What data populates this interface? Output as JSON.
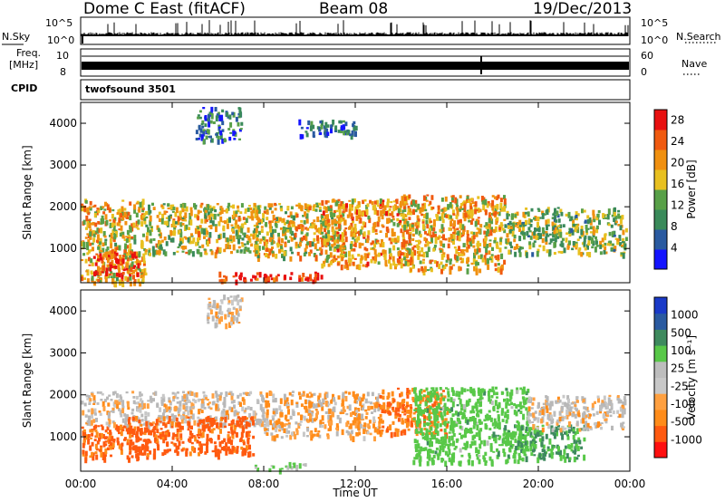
{
  "header": {
    "station": "Dome C East (fitACF)",
    "beam": "Beam 08",
    "date": "19/Dec/2013"
  },
  "summary_panels": {
    "nsky_label": "N.Sky",
    "nsearch_label": "N.Search",
    "nsky_ticks": [
      "10^5",
      "10^0"
    ],
    "nsearch_ticks": [
      "10^5",
      "10^0"
    ],
    "freq_label_top": "Freq.",
    "freq_label_unit": "[MHz]",
    "freq_ticks": [
      "10",
      "8"
    ],
    "nave_label": "Nave",
    "nave_ticks": [
      "60",
      "0"
    ],
    "cpid_label": "CPID",
    "cpid_value": "twofsound 3501"
  },
  "colors": {
    "power_scale": [
      "#1414ff",
      "#2a5aa0",
      "#3a8a5a",
      "#58a048",
      "#e8c020",
      "#f09010",
      "#f05a10",
      "#e81010"
    ],
    "velocity_scale": [
      "#ff1010",
      "#ff5a10",
      "#ff8c1a",
      "#ffa040",
      "#c8c8c8",
      "#bdbdbd",
      "#58c848",
      "#3e8a5e",
      "#2a5aa0",
      "#1a3ac8"
    ],
    "ground_scatter": "#b8b8b8"
  },
  "chart_data": [
    {
      "type": "heatmap",
      "title": "",
      "xlabel": "",
      "ylabel": "Slant Range [km]",
      "xlim": [
        0,
        24
      ],
      "ylim": [
        180,
        4500
      ],
      "x_ticks": [
        "00:00",
        "04:00",
        "08:00",
        "12:00",
        "16:00",
        "20:00",
        "00:00"
      ],
      "y_ticks": [
        1000,
        2000,
        3000,
        4000
      ],
      "colorbar": {
        "label": "Power [dB]",
        "ticks": [
          4,
          8,
          12,
          16,
          20,
          24,
          28
        ],
        "range": [
          0,
          30
        ]
      },
      "regions": [
        {
          "x0": 0.0,
          "x1": 2.8,
          "y0": 200,
          "y1": 2200,
          "level": 18
        },
        {
          "x0": 0.5,
          "x1": 2.5,
          "y0": 400,
          "y1": 1000,
          "level": 26
        },
        {
          "x0": 2.8,
          "x1": 7.8,
          "y0": 900,
          "y1": 2100,
          "level": 16
        },
        {
          "x0": 6.0,
          "x1": 10.5,
          "y0": 250,
          "y1": 450,
          "level": 27
        },
        {
          "x0": 7.5,
          "x1": 11.5,
          "y0": 800,
          "y1": 2100,
          "level": 17
        },
        {
          "x0": 10.5,
          "x1": 14.5,
          "y0": 600,
          "y1": 2200,
          "level": 20
        },
        {
          "x0": 14.0,
          "x1": 18.5,
          "y0": 500,
          "y1": 2300,
          "level": 19
        },
        {
          "x0": 18.5,
          "x1": 23.8,
          "y0": 900,
          "y1": 2000,
          "level": 14
        },
        {
          "x0": 5.0,
          "x1": 7.0,
          "y0": 3600,
          "y1": 4400,
          "level": 8
        },
        {
          "x0": 9.5,
          "x1": 12.0,
          "y0": 3700,
          "y1": 4100,
          "level": 7
        }
      ]
    },
    {
      "type": "heatmap",
      "title": "",
      "xlabel": "Time UT",
      "ylabel": "Slant Range [km]",
      "xlim": [
        0,
        24
      ],
      "ylim": [
        180,
        4500
      ],
      "x_ticks": [
        "00:00",
        "04:00",
        "08:00",
        "12:00",
        "16:00",
        "20:00",
        "00:00"
      ],
      "y_ticks": [
        1000,
        2000,
        3000,
        4000
      ],
      "colorbar": {
        "label": "Velocity [m s^-1]",
        "ticks": [
          1000,
          500,
          100,
          25,
          -25,
          -100,
          -500,
          -1000
        ],
        "range": [
          -1000,
          1000
        ]
      },
      "regions": [
        {
          "x0": 0.0,
          "x1": 3.0,
          "y0": 500,
          "y1": 1300,
          "level": -150
        },
        {
          "x0": 0.0,
          "x1": 8.0,
          "y0": 1300,
          "y1": 2100,
          "level": 0
        },
        {
          "x0": 2.0,
          "x1": 7.5,
          "y0": 600,
          "y1": 1500,
          "level": -200
        },
        {
          "x0": 7.5,
          "x1": 10.0,
          "y0": 250,
          "y1": 400,
          "level": 120
        },
        {
          "x0": 8.0,
          "x1": 13.0,
          "y0": 1000,
          "y1": 2100,
          "level": -20
        },
        {
          "x0": 13.0,
          "x1": 16.0,
          "y0": 1100,
          "y1": 2200,
          "level": -80
        },
        {
          "x0": 14.5,
          "x1": 19.5,
          "y0": 400,
          "y1": 2200,
          "level": 300
        },
        {
          "x0": 18.5,
          "x1": 22.0,
          "y0": 500,
          "y1": 1300,
          "level": 500
        },
        {
          "x0": 19.5,
          "x1": 23.8,
          "y0": 1200,
          "y1": 2000,
          "level": 0
        },
        {
          "x0": 5.5,
          "x1": 7.0,
          "y0": 3700,
          "y1": 4400,
          "level": 0
        }
      ]
    }
  ]
}
